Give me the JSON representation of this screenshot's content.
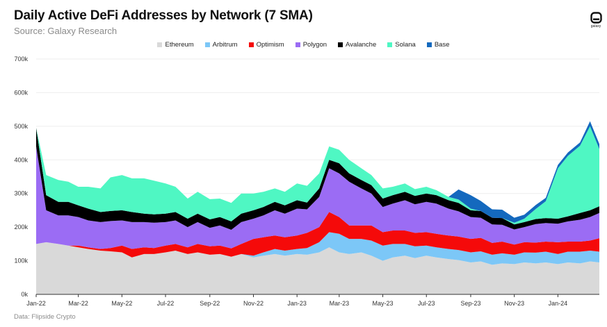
{
  "header": {
    "title": "Daily Active DeFi Addresses by Network (7 SMA)",
    "subtitle": "Source: Galaxy Research",
    "logo_text": "galaxy"
  },
  "footer": {
    "note": "Data: Flipside Crypto"
  },
  "chart_data": {
    "type": "area",
    "stacked": true,
    "title": "Daily Active DeFi Addresses by Network (7 SMA)",
    "xlabel": "",
    "ylabel": "",
    "ylim": [
      0,
      700000
    ],
    "yticks": [
      0,
      100000,
      200000,
      300000,
      400000,
      500000,
      600000,
      700000
    ],
    "ytick_labels": [
      "0k",
      "100k",
      "200k",
      "300k",
      "400k",
      "500k",
      "600k",
      "700k"
    ],
    "xticks": [
      "2022-01-01",
      "2022-03-01",
      "2022-05-01",
      "2022-07-01",
      "2022-09-01",
      "2022-11-01",
      "2023-01-01",
      "2023-03-01",
      "2023-05-01",
      "2023-07-01",
      "2023-09-01",
      "2023-11-01",
      "2024-01-01"
    ],
    "xtick_labels": [
      "Jan-22",
      "Mar-22",
      "May-22",
      "Jul-22",
      "Sep-22",
      "Nov-22",
      "Jan-23",
      "Mar-23",
      "May-23",
      "Jul-23",
      "Sep-23",
      "Nov-23",
      "Jan-24"
    ],
    "grid": "horizontal",
    "legend_position": "top-center",
    "x": [
      "2022-01-01",
      "2022-01-15",
      "2022-02-01",
      "2022-02-15",
      "2022-03-01",
      "2022-03-15",
      "2022-04-01",
      "2022-04-15",
      "2022-05-01",
      "2022-05-15",
      "2022-06-01",
      "2022-06-15",
      "2022-07-01",
      "2022-07-15",
      "2022-08-01",
      "2022-08-15",
      "2022-09-01",
      "2022-09-15",
      "2022-10-01",
      "2022-10-15",
      "2022-11-01",
      "2022-11-15",
      "2022-12-01",
      "2022-12-15",
      "2023-01-01",
      "2023-01-15",
      "2023-02-01",
      "2023-02-15",
      "2023-03-01",
      "2023-03-15",
      "2023-04-01",
      "2023-04-15",
      "2023-05-01",
      "2023-05-15",
      "2023-06-01",
      "2023-06-15",
      "2023-07-01",
      "2023-07-15",
      "2023-08-01",
      "2023-08-15",
      "2023-09-01",
      "2023-09-15",
      "2023-10-01",
      "2023-10-15",
      "2023-11-01",
      "2023-11-15",
      "2023-12-01",
      "2023-12-15",
      "2024-01-01",
      "2024-01-15",
      "2024-02-01",
      "2024-02-15",
      "2024-02-28"
    ],
    "series": [
      {
        "name": "Ethereum",
        "color": "#d9d9d9",
        "values": [
          150000,
          155000,
          150000,
          145000,
          140000,
          135000,
          130000,
          128000,
          125000,
          110000,
          120000,
          120000,
          125000,
          130000,
          120000,
          125000,
          118000,
          120000,
          112000,
          120000,
          110000,
          115000,
          120000,
          115000,
          120000,
          118000,
          125000,
          140000,
          125000,
          120000,
          125000,
          115000,
          100000,
          110000,
          115000,
          108000,
          115000,
          110000,
          105000,
          102000,
          95000,
          98000,
          88000,
          92000,
          90000,
          95000,
          92000,
          95000,
          90000,
          95000,
          92000,
          98000,
          95000
        ]
      },
      {
        "name": "Arbitrum",
        "color": "#7cc7f7",
        "values": [
          0,
          0,
          0,
          0,
          0,
          0,
          0,
          0,
          0,
          0,
          0,
          0,
          0,
          0,
          0,
          0,
          0,
          0,
          0,
          0,
          5000,
          10000,
          15000,
          15000,
          15000,
          20000,
          30000,
          45000,
          55000,
          45000,
          40000,
          45000,
          45000,
          40000,
          35000,
          35000,
          30000,
          30000,
          30000,
          30000,
          30000,
          30000,
          30000,
          30000,
          28000,
          30000,
          32000,
          32000,
          30000,
          32000,
          35000,
          32000,
          32000
        ]
      },
      {
        "name": "Optimism",
        "color": "#f50a0a",
        "values": [
          0,
          0,
          0,
          0,
          5000,
          5000,
          5000,
          10000,
          20000,
          25000,
          20000,
          18000,
          20000,
          20000,
          20000,
          25000,
          25000,
          25000,
          25000,
          30000,
          50000,
          45000,
          40000,
          40000,
          40000,
          45000,
          45000,
          60000,
          50000,
          40000,
          40000,
          45000,
          40000,
          40000,
          40000,
          40000,
          40000,
          40000,
          40000,
          40000,
          40000,
          40000,
          35000,
          35000,
          30000,
          30000,
          30000,
          30000,
          35000,
          30000,
          30000,
          30000,
          40000
        ]
      },
      {
        "name": "Polygon",
        "color": "#9b6cf4",
        "values": [
          290000,
          95000,
          85000,
          90000,
          85000,
          80000,
          80000,
          80000,
          75000,
          80000,
          75000,
          75000,
          70000,
          70000,
          60000,
          65000,
          55000,
          60000,
          55000,
          65000,
          60000,
          65000,
          75000,
          70000,
          80000,
          70000,
          90000,
          130000,
          130000,
          130000,
          110000,
          95000,
          75000,
          80000,
          90000,
          85000,
          90000,
          90000,
          80000,
          75000,
          65000,
          60000,
          55000,
          50000,
          45000,
          45000,
          55000,
          55000,
          55000,
          60000,
          65000,
          70000,
          75000
        ]
      },
      {
        "name": "Avalanche",
        "color": "#000000",
        "values": [
          55000,
          45000,
          40000,
          40000,
          35000,
          35000,
          30000,
          30000,
          30000,
          30000,
          25000,
          25000,
          25000,
          25000,
          25000,
          25000,
          25000,
          25000,
          25000,
          25000,
          25000,
          25000,
          25000,
          25000,
          25000,
          20000,
          25000,
          25000,
          30000,
          25000,
          25000,
          25000,
          25000,
          25000,
          25000,
          25000,
          25000,
          25000,
          25000,
          25000,
          20000,
          20000,
          20000,
          20000,
          15000,
          15000,
          15000,
          15000,
          15000,
          15000,
          20000,
          20000,
          20000
        ]
      },
      {
        "name": "Solana",
        "color": "#4ff7c3",
        "values": [
          0,
          60000,
          65000,
          60000,
          55000,
          65000,
          70000,
          100000,
          105000,
          100000,
          105000,
          100000,
          90000,
          75000,
          60000,
          65000,
          60000,
          55000,
          55000,
          60000,
          50000,
          45000,
          40000,
          40000,
          50000,
          50000,
          45000,
          40000,
          40000,
          40000,
          35000,
          30000,
          30000,
          25000,
          25000,
          20000,
          20000,
          15000,
          10000,
          10000,
          5000,
          0,
          0,
          0,
          5000,
          10000,
          30000,
          50000,
          150000,
          180000,
          200000,
          250000,
          170000
        ]
      },
      {
        "name": "Base",
        "color": "#1469be",
        "values": [
          0,
          0,
          0,
          0,
          0,
          0,
          0,
          0,
          0,
          0,
          0,
          0,
          0,
          0,
          0,
          0,
          0,
          0,
          0,
          0,
          0,
          0,
          0,
          0,
          0,
          0,
          0,
          0,
          0,
          0,
          0,
          0,
          0,
          0,
          0,
          0,
          0,
          0,
          0,
          30000,
          40000,
          30000,
          25000,
          25000,
          15000,
          12000,
          12000,
          10000,
          10000,
          10000,
          10000,
          15000,
          15000
        ]
      }
    ]
  }
}
